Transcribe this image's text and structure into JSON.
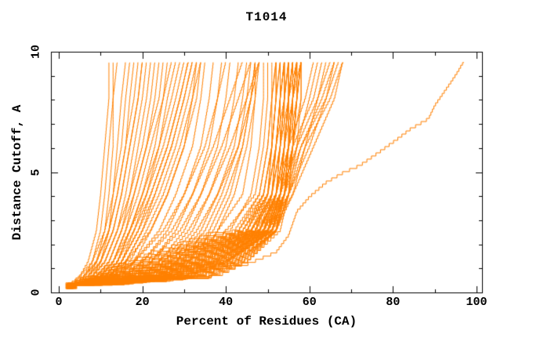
{
  "chart_data": {
    "type": "line",
    "title": "T1014",
    "xlabel": "Percent of Residues (CA)",
    "ylabel": "Distance Cutoff, A",
    "xlim": [
      0,
      100
    ],
    "ylim": [
      0,
      10
    ],
    "x_major_ticks": [
      0,
      20,
      40,
      60,
      80,
      100
    ],
    "x_minor_tick_step": 10,
    "y_major_ticks": [
      0,
      5,
      10
    ],
    "y_minor_tick_step": 1,
    "grid": "off",
    "legend": "none",
    "line_color": "#ff8000",
    "axis_color": "#000000",
    "background_color": "#ffffff",
    "curve_count": 101,
    "levels": [
      0.15,
      0.6,
      1.2,
      2.5,
      4.0,
      6.0,
      8.0,
      9.55
    ],
    "curve_groups": [
      {
        "name": "main-band-models",
        "curves": [
          [
            2.2,
            9,
            18,
            40,
            47,
            49,
            50,
            50
          ],
          [
            3.5,
            12,
            22,
            44,
            50,
            52,
            53,
            53
          ],
          [
            2.8,
            15,
            26,
            46,
            51,
            53,
            54,
            55
          ],
          [
            4.0,
            18,
            30,
            48,
            52,
            54,
            55,
            56
          ],
          [
            2.5,
            21,
            33,
            49,
            53,
            54,
            56,
            57
          ],
          [
            3.2,
            24,
            36,
            50,
            54,
            55,
            56,
            58
          ],
          [
            2.0,
            27,
            38,
            51,
            54,
            56,
            57,
            57
          ],
          [
            3.8,
            30,
            40,
            51,
            53,
            55,
            56,
            56
          ],
          [
            2.6,
            33,
            42,
            52,
            54,
            55,
            55,
            56
          ],
          [
            3.0,
            36,
            44,
            52,
            53,
            54,
            55,
            55
          ],
          [
            2.3,
            10,
            20,
            42,
            48,
            50,
            51,
            52
          ],
          [
            3.6,
            13,
            24,
            45,
            50,
            52,
            53,
            54
          ],
          [
            2.9,
            16,
            28,
            47,
            51,
            52,
            54,
            54
          ],
          [
            4.2,
            19,
            31,
            48,
            52,
            53,
            54,
            55
          ],
          [
            2.4,
            22,
            34,
            49,
            52,
            54,
            55,
            55
          ],
          [
            3.3,
            25,
            37,
            50,
            53,
            54,
            55,
            56
          ],
          [
            2.1,
            28,
            39,
            50,
            53,
            55,
            56,
            57
          ],
          [
            3.9,
            31,
            41,
            51,
            54,
            55,
            57,
            58
          ],
          [
            2.7,
            34,
            43,
            52,
            54,
            56,
            57,
            58
          ],
          [
            3.1,
            37,
            45,
            52,
            55,
            56,
            57,
            58
          ],
          [
            2.2,
            11,
            21,
            43,
            49,
            51,
            52,
            52
          ],
          [
            3.4,
            14,
            25,
            45,
            50,
            51,
            52,
            53
          ],
          [
            2.8,
            17,
            29,
            47,
            51,
            53,
            53,
            54
          ],
          [
            4.1,
            20,
            32,
            48,
            52,
            53,
            55,
            55
          ],
          [
            2.5,
            23,
            35,
            49,
            53,
            54,
            55,
            56
          ],
          [
            3.2,
            26,
            37,
            50,
            53,
            55,
            56,
            56
          ],
          [
            2.0,
            29,
            39,
            51,
            54,
            55,
            56,
            57
          ],
          [
            3.7,
            32,
            41,
            51,
            54,
            56,
            57,
            57
          ],
          [
            2.6,
            35,
            43,
            52,
            55,
            56,
            57,
            58
          ],
          [
            3.0,
            38,
            45,
            53,
            55,
            56,
            58,
            58
          ],
          [
            2.3,
            12,
            23,
            44,
            49,
            51,
            52,
            53
          ],
          [
            3.5,
            15,
            27,
            46,
            51,
            52,
            53,
            54
          ],
          [
            2.9,
            18,
            30,
            48,
            52,
            54,
            54,
            55
          ],
          [
            4.3,
            21,
            33,
            49,
            52,
            54,
            55,
            56
          ],
          [
            2.4,
            24,
            36,
            50,
            53,
            55,
            55,
            57
          ],
          [
            3.3,
            27,
            38,
            50,
            54,
            55,
            56,
            57
          ],
          [
            2.1,
            30,
            40,
            51,
            54,
            56,
            56,
            57
          ],
          [
            3.8,
            33,
            42,
            52,
            54,
            56,
            57,
            58
          ],
          [
            2.7,
            36,
            44,
            52,
            55,
            57,
            58,
            58
          ],
          [
            3.1,
            8,
            16,
            38,
            44,
            46,
            47,
            47
          ],
          [
            2.2,
            10,
            19,
            41,
            46,
            48,
            49,
            49
          ],
          [
            3.6,
            13,
            23,
            43,
            48,
            50,
            51,
            51
          ],
          [
            2.8,
            16,
            27,
            45,
            49,
            51,
            52,
            52
          ],
          [
            4.0,
            19,
            30,
            46,
            50,
            51,
            51,
            52
          ],
          [
            2.5,
            22,
            33,
            47,
            50,
            52,
            53,
            53
          ],
          [
            3.2,
            25,
            36,
            48,
            51,
            53,
            54,
            54
          ],
          [
            2.0,
            28,
            38,
            49,
            51,
            52,
            53,
            54
          ],
          [
            3.4,
            31,
            40,
            50,
            52,
            53,
            54,
            54
          ]
        ]
      },
      {
        "name": "right-bending-models",
        "curves": [
          [
            2.4,
            14,
            26,
            46,
            52,
            55,
            59,
            61
          ],
          [
            3.1,
            18,
            30,
            48,
            53,
            56,
            61,
            63
          ],
          [
            2.7,
            22,
            34,
            49,
            54,
            57,
            62,
            65
          ],
          [
            3.5,
            26,
            37,
            50,
            55,
            58,
            64,
            67
          ],
          [
            2.2,
            30,
            40,
            51,
            55,
            59,
            65,
            68
          ],
          [
            3.8,
            16,
            28,
            47,
            53,
            57,
            60,
            62
          ],
          [
            2.9,
            20,
            32,
            49,
            54,
            58,
            63,
            66
          ],
          [
            3.3,
            24,
            35,
            50,
            55,
            60,
            64,
            66
          ],
          [
            2.5,
            28,
            39,
            51,
            56,
            61,
            66,
            68
          ],
          [
            3.0,
            34,
            42,
            52,
            56,
            59,
            62,
            64
          ]
        ]
      },
      {
        "name": "early-riser-models",
        "curves": [
          [
            1.8,
            5,
            7,
            9,
            10,
            11,
            12,
            12
          ],
          [
            2.4,
            6,
            8,
            10,
            11,
            12,
            13,
            13
          ],
          [
            2.0,
            7,
            9,
            11,
            12,
            13,
            13,
            14
          ],
          [
            2.8,
            8,
            10,
            12,
            13,
            14,
            15,
            16
          ],
          [
            2.2,
            6,
            9,
            12,
            14,
            16,
            17,
            18
          ],
          [
            3.0,
            7,
            10,
            13,
            15,
            17,
            19,
            20
          ],
          [
            1.9,
            8,
            11,
            14,
            16,
            18,
            20,
            21
          ],
          [
            2.6,
            9,
            12,
            15,
            17,
            19,
            21,
            22
          ],
          [
            2.1,
            10,
            13,
            16,
            18,
            21,
            23,
            24
          ],
          [
            2.9,
            11,
            14,
            17,
            20,
            23,
            25,
            26
          ],
          [
            2.3,
            12,
            15,
            18,
            21,
            24,
            26,
            28
          ],
          [
            3.1,
            9,
            13,
            17,
            20,
            24,
            27,
            29
          ],
          [
            1.7,
            10,
            14,
            18,
            22,
            26,
            29,
            31
          ],
          [
            2.5,
            11,
            15,
            19,
            23,
            27,
            30,
            32
          ],
          [
            2.0,
            12,
            16,
            20,
            24,
            28,
            31,
            33
          ],
          [
            2.7,
            13,
            17,
            21,
            25,
            29,
            32,
            34
          ],
          [
            2.2,
            5,
            8,
            11,
            13,
            15,
            16,
            17
          ],
          [
            3.2,
            6,
            9,
            12,
            14,
            16,
            18,
            19
          ],
          [
            1.8,
            7,
            10,
            13,
            15,
            17,
            19,
            20
          ],
          [
            2.6,
            8,
            11,
            14,
            17,
            20,
            22,
            23
          ],
          [
            2.1,
            9,
            12,
            15,
            18,
            21,
            24,
            25
          ],
          [
            2.8,
            10,
            13,
            16,
            19,
            22,
            25,
            27
          ],
          [
            2.4,
            11,
            14,
            17,
            21,
            25,
            28,
            30
          ],
          [
            3.0,
            12,
            15,
            19,
            22,
            26,
            29,
            31
          ],
          [
            1.9,
            13,
            16,
            20,
            23,
            27,
            30,
            32
          ],
          [
            2.5,
            14,
            18,
            22,
            26,
            30,
            33,
            34
          ]
        ]
      },
      {
        "name": "mid-riser-models",
        "curves": [
          [
            2.3,
            12,
            16,
            22,
            26,
            30,
            32,
            33
          ],
          [
            3.1,
            14,
            18,
            24,
            28,
            32,
            34,
            35
          ],
          [
            2.6,
            16,
            20,
            26,
            30,
            34,
            36,
            37
          ],
          [
            3.4,
            18,
            22,
            28,
            32,
            36,
            38,
            39
          ],
          [
            2.1,
            20,
            24,
            30,
            34,
            38,
            40,
            41
          ],
          [
            2.9,
            22,
            26,
            32,
            36,
            40,
            42,
            43
          ],
          [
            2.4,
            24,
            28,
            34,
            38,
            42,
            44,
            45
          ],
          [
            3.2,
            26,
            30,
            36,
            40,
            44,
            46,
            47
          ],
          [
            2.7,
            15,
            20,
            27,
            32,
            37,
            41,
            44
          ],
          [
            3.5,
            17,
            22,
            29,
            34,
            39,
            43,
            46
          ],
          [
            2.2,
            19,
            25,
            31,
            36,
            41,
            45,
            48
          ],
          [
            3.0,
            21,
            27,
            33,
            38,
            43,
            46,
            48
          ],
          [
            2.5,
            13,
            18,
            25,
            30,
            35,
            38,
            40
          ],
          [
            3.3,
            23,
            29,
            35,
            39,
            43,
            45,
            46
          ],
          [
            2.8,
            25,
            31,
            37,
            41,
            44,
            46,
            47
          ],
          [
            2.0,
            27,
            33,
            38,
            42,
            45,
            47,
            48
          ]
        ]
      },
      {
        "name": "outlier-model",
        "points_curves": [
          [
            [
              3,
              0.15
            ],
            [
              18,
              0.45
            ],
            [
              32,
              0.75
            ],
            [
              45,
              1.1
            ],
            [
              52,
              1.6
            ],
            [
              55,
              2.3
            ],
            [
              57,
              3.3
            ],
            [
              60,
              3.9
            ],
            [
              64,
              4.5
            ],
            [
              68,
              4.9
            ],
            [
              72,
              5.2
            ],
            [
              77,
              5.8
            ],
            [
              81,
              6.3
            ],
            [
              84,
              6.7
            ],
            [
              87,
              7.0
            ],
            [
              88.5,
              7.15
            ],
            [
              90,
              7.7
            ],
            [
              92,
              8.2
            ],
            [
              94,
              8.7
            ],
            [
              95.5,
              9.1
            ],
            [
              97,
              9.55
            ]
          ]
        ]
      }
    ]
  }
}
